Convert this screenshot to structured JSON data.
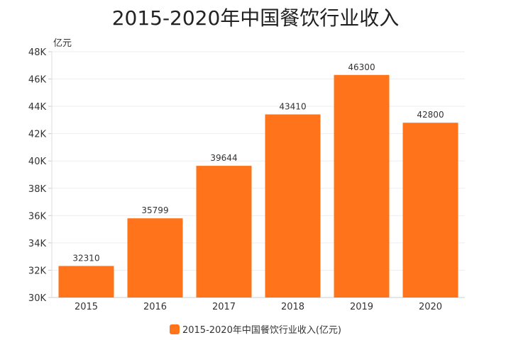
{
  "chart_data": {
    "type": "bar",
    "title": "2015-2020年中国餐饮行业收入",
    "ylabel": "亿元",
    "xlabel": "",
    "categories": [
      "2015",
      "2016",
      "2017",
      "2018",
      "2019",
      "2020"
    ],
    "series": [
      {
        "name": "2015-2020年中国餐饮行业收入(亿元)",
        "values": [
          32310,
          35799,
          39644,
          43410,
          46300,
          42800
        ]
      }
    ],
    "ylim": [
      30000,
      48000
    ],
    "yticks": [
      30000,
      32000,
      34000,
      36000,
      38000,
      40000,
      42000,
      44000,
      46000,
      48000
    ],
    "ytick_labels": [
      "30K",
      "32K",
      "34K",
      "36K",
      "38K",
      "40K",
      "42K",
      "44K",
      "46K",
      "48K"
    ],
    "grid": true,
    "legend": "bottom-center",
    "color": "#FF741A"
  }
}
